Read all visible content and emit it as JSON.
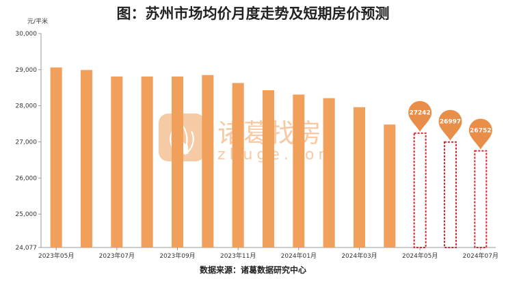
{
  "title": "图：苏州市场均价月度走势及短期房价预测",
  "source": "数据来源：诸葛数据研究中心",
  "watermark": {
    "name": "诸葛找房",
    "url": "zhuge.com"
  },
  "colors": {
    "bar": "#F0A05A",
    "forecast_border": "#D9232D",
    "pin": "#E98E48",
    "axis": "#999999"
  },
  "chart_data": {
    "type": "bar",
    "title": "图：苏州市场均价月度走势及短期房价预测",
    "ylabel": "元/平米",
    "xlabel": "",
    "ylim": [
      24077,
      30000
    ],
    "y_ticks": [
      "24,077",
      "25,000",
      "26,000",
      "27,000",
      "28,000",
      "29,000",
      "30,000"
    ],
    "y_tick_values": [
      24077,
      25000,
      26000,
      27000,
      28000,
      29000,
      30000
    ],
    "x_tick_labels": [
      "2023年05月",
      "2023年07月",
      "2023年09月",
      "2023年11月",
      "2024年01月",
      "2024年03月",
      "2024年05月",
      "2024年07月"
    ],
    "categories": [
      "2023年05月",
      "2023年06月",
      "2023年07月",
      "2023年08月",
      "2023年09月",
      "2023年10月",
      "2023年11月",
      "2023年12月",
      "2024年01月",
      "2024年02月",
      "2024年03月",
      "2024年04月",
      "2024年05月",
      "2024年06月",
      "2024年07月"
    ],
    "series": [
      {
        "values": [
          29060,
          28990,
          28810,
          28810,
          28810,
          28850,
          28630,
          28430,
          28310,
          28210,
          27960,
          27480,
          null,
          null,
          null
        ]
      },
      {
        "values": [
          null,
          null,
          null,
          null,
          null,
          null,
          null,
          null,
          null,
          null,
          null,
          null,
          27242,
          26997,
          26752
        ]
      }
    ],
    "forecast_labels": [
      "27242",
      "26997",
      "26752"
    ],
    "grid": false
  }
}
